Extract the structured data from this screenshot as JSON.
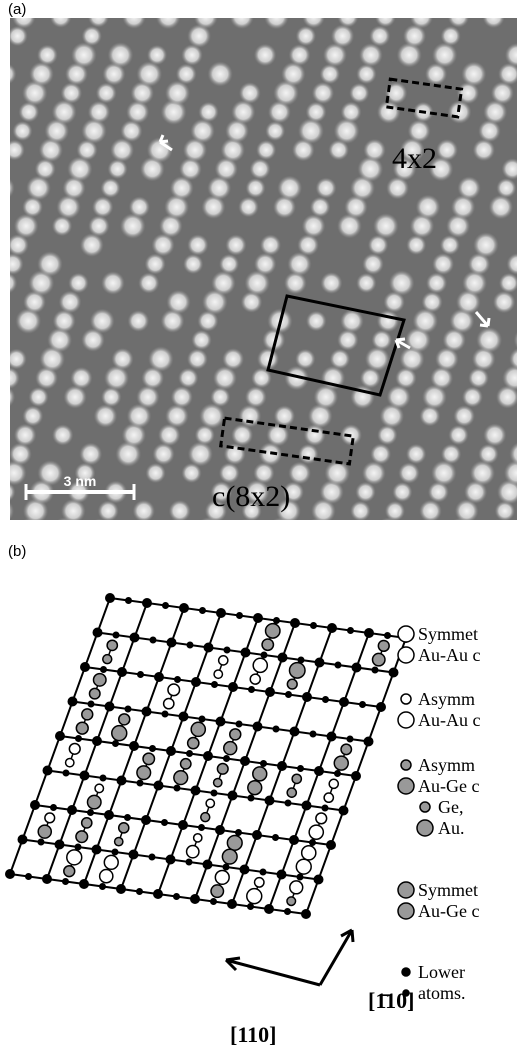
{
  "panel_a": {
    "label": "(a)",
    "annotations": [
      "4x2",
      "c(8x2)"
    ],
    "scale_bar": "3 nm"
  },
  "panel_b": {
    "label": "(b)",
    "legend": [
      [
        "Symmet",
        "Au-Au c"
      ],
      [
        "Asymm",
        "Au-Au c"
      ],
      [
        "Asymm",
        "Au-Ge c",
        "Ge,",
        "Au."
      ],
      [
        "Symmet",
        "Au-Ge c"
      ],
      [
        "Lower",
        "atoms."
      ]
    ],
    "directions": [
      "[110]",
      "[1̄10]"
    ]
  }
}
